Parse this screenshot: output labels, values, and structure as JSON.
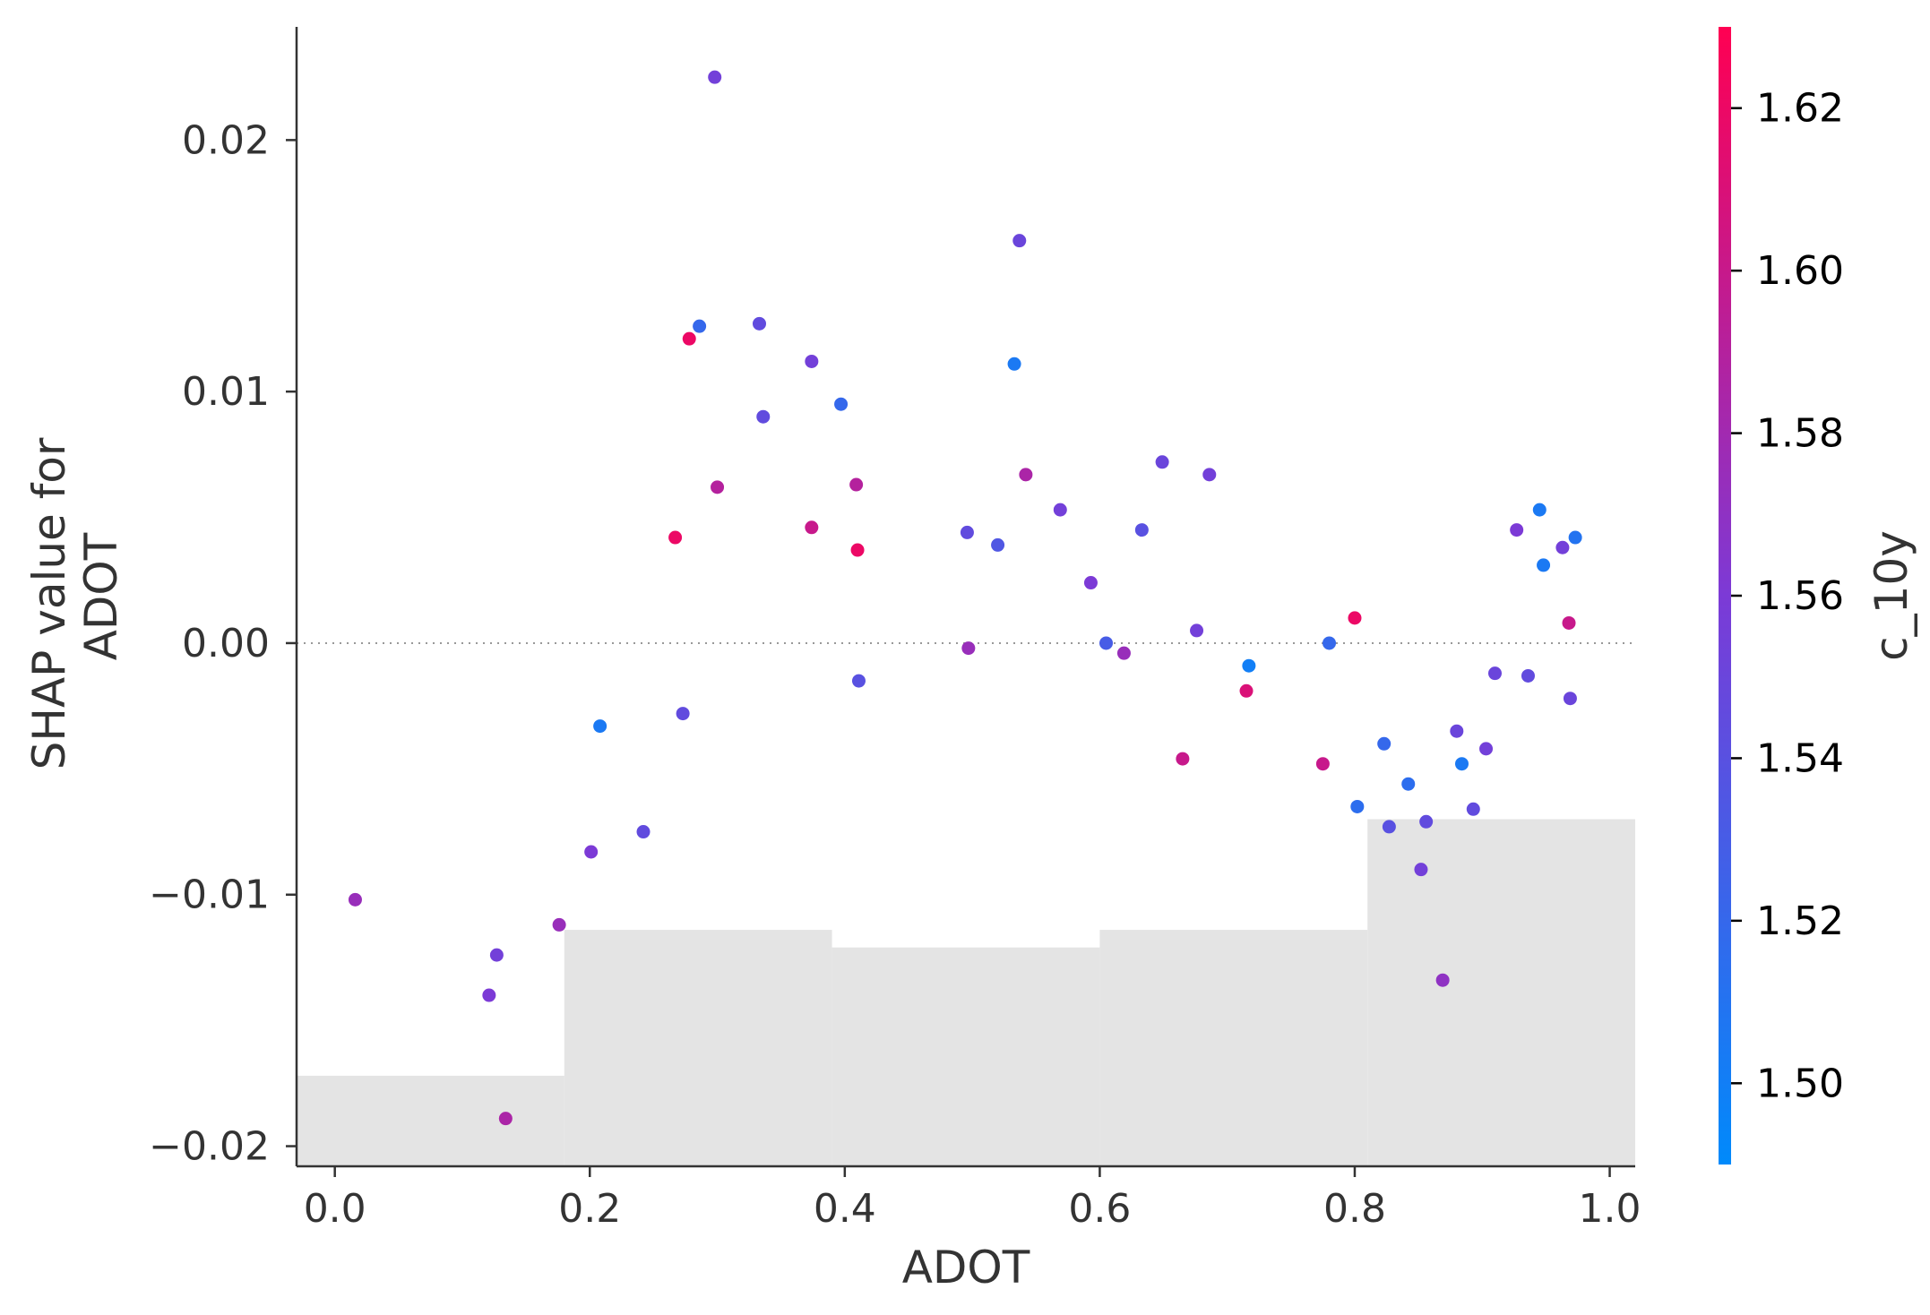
{
  "chart_data": {
    "type": "scatter",
    "title": "",
    "xlabel": "ADOT",
    "ylabel_lines": [
      "SHAP value for",
      "ADOT"
    ],
    "xlim": [
      -0.03,
      1.02
    ],
    "ylim": [
      -0.0208,
      0.0245
    ],
    "x_ticks": [
      0.0,
      0.2,
      0.4,
      0.6,
      0.8,
      1.0
    ],
    "x_tick_labels": [
      "0.0",
      "0.2",
      "0.4",
      "0.6",
      "0.8",
      "1.0"
    ],
    "y_ticks": [
      -0.02,
      -0.01,
      0.0,
      0.01,
      0.02
    ],
    "y_tick_labels": [
      "−0.02",
      "−0.01",
      "0.00",
      "0.01",
      "0.02"
    ],
    "zero_line": true,
    "grid": false,
    "colorbar": {
      "label": "c_10y",
      "min": 1.49,
      "max": 1.63,
      "ticks": [
        1.5,
        1.52,
        1.54,
        1.56,
        1.58,
        1.6,
        1.62
      ],
      "tick_labels": [
        "1.50",
        "1.52",
        "1.54",
        "1.56",
        "1.58",
        "1.60",
        "1.62"
      ],
      "color_low": "#008afb",
      "color_mid": "#7c3ad6",
      "color_high": "#ff0052"
    },
    "histogram": {
      "color": "#e4e4e4",
      "bins": [
        {
          "x0": -0.03,
          "x1": 0.18,
          "top": -0.0172
        },
        {
          "x0": 0.18,
          "x1": 0.39,
          "top": -0.0114
        },
        {
          "x0": 0.39,
          "x1": 0.6,
          "top": -0.0121
        },
        {
          "x0": 0.6,
          "x1": 0.81,
          "top": -0.0114
        },
        {
          "x0": 0.81,
          "x1": 1.02,
          "top": -0.007
        }
      ]
    },
    "points": [
      {
        "x": 0.016,
        "y": -0.0102,
        "c": 1.575
      },
      {
        "x": 0.121,
        "y": -0.014,
        "c": 1.56
      },
      {
        "x": 0.127,
        "y": -0.0124,
        "c": 1.555
      },
      {
        "x": 0.134,
        "y": -0.0189,
        "c": 1.585
      },
      {
        "x": 0.176,
        "y": -0.0112,
        "c": 1.575
      },
      {
        "x": 0.201,
        "y": -0.0083,
        "c": 1.56
      },
      {
        "x": 0.208,
        "y": -0.0033,
        "c": 1.505
      },
      {
        "x": 0.242,
        "y": -0.0075,
        "c": 1.545
      },
      {
        "x": 0.267,
        "y": 0.0042,
        "c": 1.62
      },
      {
        "x": 0.273,
        "y": -0.0028,
        "c": 1.545
      },
      {
        "x": 0.278,
        "y": 0.0121,
        "c": 1.62
      },
      {
        "x": 0.286,
        "y": 0.0126,
        "c": 1.52
      },
      {
        "x": 0.298,
        "y": 0.0225,
        "c": 1.555
      },
      {
        "x": 0.3,
        "y": 0.0062,
        "c": 1.59
      },
      {
        "x": 0.333,
        "y": 0.0127,
        "c": 1.545
      },
      {
        "x": 0.336,
        "y": 0.009,
        "c": 1.545
      },
      {
        "x": 0.374,
        "y": 0.0112,
        "c": 1.555
      },
      {
        "x": 0.374,
        "y": 0.0046,
        "c": 1.6
      },
      {
        "x": 0.397,
        "y": 0.0095,
        "c": 1.52
      },
      {
        "x": 0.409,
        "y": 0.0063,
        "c": 1.59
      },
      {
        "x": 0.41,
        "y": 0.0037,
        "c": 1.62
      },
      {
        "x": 0.411,
        "y": -0.0015,
        "c": 1.54
      },
      {
        "x": 0.496,
        "y": 0.0044,
        "c": 1.545
      },
      {
        "x": 0.497,
        "y": -0.0002,
        "c": 1.575
      },
      {
        "x": 0.52,
        "y": 0.0039,
        "c": 1.535
      },
      {
        "x": 0.533,
        "y": 0.0111,
        "c": 1.505
      },
      {
        "x": 0.537,
        "y": 0.016,
        "c": 1.55
      },
      {
        "x": 0.542,
        "y": 0.0067,
        "c": 1.585
      },
      {
        "x": 0.569,
        "y": 0.0053,
        "c": 1.555
      },
      {
        "x": 0.593,
        "y": 0.0024,
        "c": 1.56
      },
      {
        "x": 0.605,
        "y": 0.0,
        "c": 1.53
      },
      {
        "x": 0.619,
        "y": -0.0004,
        "c": 1.575
      },
      {
        "x": 0.633,
        "y": 0.0045,
        "c": 1.54
      },
      {
        "x": 0.649,
        "y": 0.0072,
        "c": 1.55
      },
      {
        "x": 0.665,
        "y": -0.0046,
        "c": 1.6
      },
      {
        "x": 0.676,
        "y": 0.0005,
        "c": 1.555
      },
      {
        "x": 0.686,
        "y": 0.0067,
        "c": 1.555
      },
      {
        "x": 0.715,
        "y": -0.0019,
        "c": 1.61
      },
      {
        "x": 0.717,
        "y": -0.0009,
        "c": 1.5
      },
      {
        "x": 0.775,
        "y": -0.0048,
        "c": 1.6
      },
      {
        "x": 0.78,
        "y": 0.0,
        "c": 1.52
      },
      {
        "x": 0.8,
        "y": 0.001,
        "c": 1.62
      },
      {
        "x": 0.802,
        "y": -0.0065,
        "c": 1.515
      },
      {
        "x": 0.823,
        "y": -0.004,
        "c": 1.52
      },
      {
        "x": 0.827,
        "y": -0.0073,
        "c": 1.54
      },
      {
        "x": 0.842,
        "y": -0.0056,
        "c": 1.515
      },
      {
        "x": 0.852,
        "y": -0.009,
        "c": 1.555
      },
      {
        "x": 0.856,
        "y": -0.0071,
        "c": 1.545
      },
      {
        "x": 0.869,
        "y": -0.0134,
        "c": 1.57
      },
      {
        "x": 0.88,
        "y": -0.0035,
        "c": 1.55
      },
      {
        "x": 0.884,
        "y": -0.0048,
        "c": 1.505
      },
      {
        "x": 0.893,
        "y": -0.0066,
        "c": 1.545
      },
      {
        "x": 0.903,
        "y": -0.0042,
        "c": 1.555
      },
      {
        "x": 0.91,
        "y": -0.0012,
        "c": 1.55
      },
      {
        "x": 0.927,
        "y": 0.0045,
        "c": 1.56
      },
      {
        "x": 0.936,
        "y": -0.0013,
        "c": 1.545
      },
      {
        "x": 0.945,
        "y": 0.0053,
        "c": 1.505
      },
      {
        "x": 0.948,
        "y": 0.0031,
        "c": 1.505
      },
      {
        "x": 0.963,
        "y": 0.0038,
        "c": 1.555
      },
      {
        "x": 0.968,
        "y": 0.0008,
        "c": 1.6
      },
      {
        "x": 0.969,
        "y": -0.0022,
        "c": 1.55
      },
      {
        "x": 0.973,
        "y": 0.0042,
        "c": 1.51
      }
    ]
  }
}
